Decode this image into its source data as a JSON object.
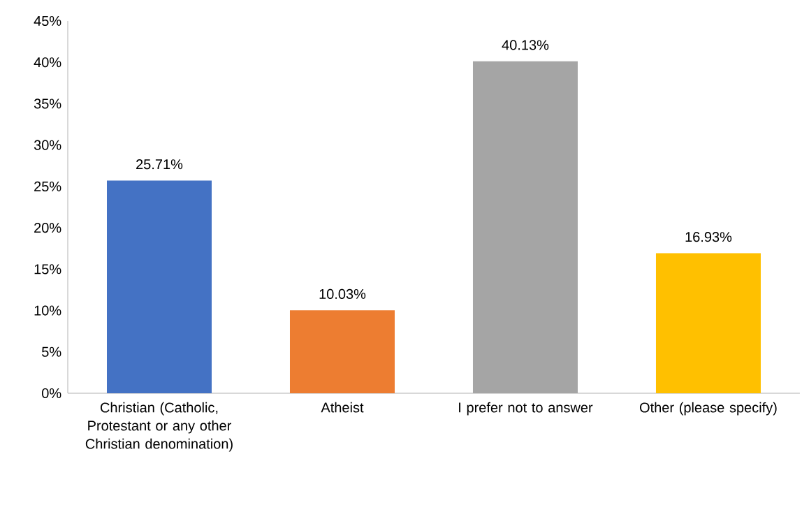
{
  "chart_data": {
    "type": "bar",
    "categories": [
      "Christian (Catholic, Protestant or any other Christian denomination)",
      "Atheist",
      "I prefer not to answer",
      "Other (please specify)"
    ],
    "values": [
      25.71,
      10.03,
      40.13,
      16.93
    ],
    "value_labels": [
      "25.71%",
      "10.03%",
      "40.13%",
      "16.93%"
    ],
    "colors": [
      "#4472c4",
      "#ed7d31",
      "#a5a5a5",
      "#ffc000"
    ],
    "ylim": [
      0,
      45
    ],
    "yticks": [
      {
        "value": 0,
        "label": "0%"
      },
      {
        "value": 5,
        "label": "5%"
      },
      {
        "value": 10,
        "label": "10%"
      },
      {
        "value": 15,
        "label": "15%"
      },
      {
        "value": 20,
        "label": "20%"
      },
      {
        "value": 25,
        "label": "25%"
      },
      {
        "value": 30,
        "label": "30%"
      },
      {
        "value": 35,
        "label": "35%"
      },
      {
        "value": 40,
        "label": "40%"
      },
      {
        "value": 45,
        "label": "45%"
      }
    ],
    "grid": false
  }
}
